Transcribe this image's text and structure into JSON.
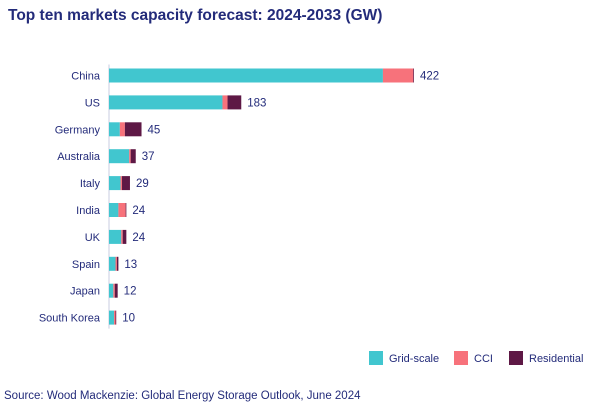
{
  "title": "Top ten markets capacity forecast: 2024-2033 (GW)",
  "source": "Source: Wood Mackenzie: Global Energy Storage Outlook, June 2024",
  "colors": {
    "grid_scale": "#41c6cf",
    "cci": "#f7727b",
    "residential": "#5e1845",
    "text": "#232b7a",
    "baseline": "#c9cde0"
  },
  "chart_data": {
    "type": "bar",
    "orientation": "horizontal",
    "stacked": true,
    "categories": [
      "China",
      "US",
      "Germany",
      "Australia",
      "Italy",
      "India",
      "UK",
      "Spain",
      "Japan",
      "South Korea"
    ],
    "series": [
      {
        "name": "Grid-scale",
        "values": [
          379,
          157,
          15,
          28,
          16,
          13,
          17,
          9,
          6,
          7
        ]
      },
      {
        "name": "CCI",
        "values": [
          42,
          7,
          7,
          2,
          2,
          10,
          2,
          2,
          2,
          2
        ]
      },
      {
        "name": "Residential",
        "values": [
          1,
          19,
          23,
          7,
          11,
          1,
          5,
          2,
          4,
          1
        ]
      }
    ],
    "totals": [
      422,
      183,
      45,
      37,
      29,
      24,
      24,
      13,
      12,
      10
    ],
    "xlim": [
      0,
      422
    ],
    "grid": false,
    "legend_position": "bottom-right"
  }
}
